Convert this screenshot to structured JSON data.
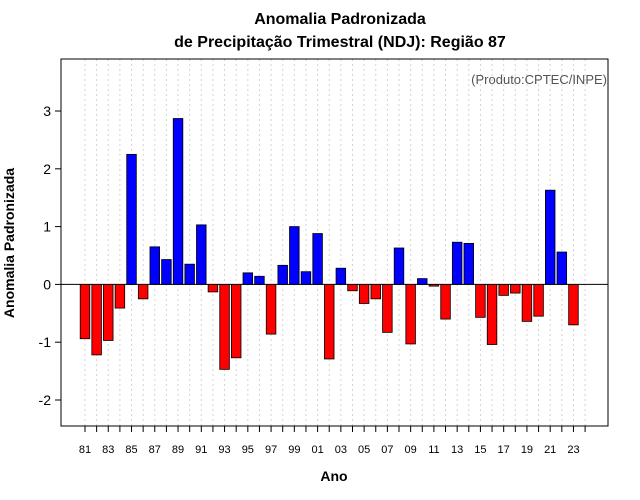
{
  "chart_data": {
    "type": "bar",
    "title": "Anomalia Padronizada",
    "subtitle": "de Precipitação Trimestral (NDJ): Região 87",
    "xlabel": "Ano",
    "ylabel": "Anomalia Padronizada",
    "credit": "(Produto:CPTEC/INPE)",
    "x": [
      1981,
      1982,
      1983,
      1984,
      1985,
      1986,
      1987,
      1988,
      1989,
      1990,
      1991,
      1992,
      1993,
      1994,
      1995,
      1996,
      1997,
      1998,
      1999,
      2000,
      2001,
      2002,
      2003,
      2004,
      2005,
      2006,
      2007,
      2008,
      2009,
      2010,
      2011,
      2012,
      2013,
      2014,
      2015,
      2016,
      2017,
      2018,
      2019,
      2020,
      2021,
      2022,
      2023
    ],
    "values": [
      -0.94,
      -1.22,
      -0.97,
      -0.41,
      2.25,
      -0.25,
      0.65,
      0.43,
      2.87,
      0.35,
      1.03,
      -0.13,
      -1.47,
      -1.27,
      0.2,
      0.14,
      -0.86,
      0.33,
      1.0,
      0.22,
      0.88,
      -1.29,
      0.28,
      -0.11,
      -0.33,
      -0.25,
      -0.83,
      0.63,
      -1.03,
      0.1,
      -0.03,
      -0.6,
      0.73,
      0.71,
      -0.57,
      -1.04,
      -0.19,
      -0.15,
      -0.64,
      -0.55,
      1.63,
      0.56,
      -0.7
    ],
    "xtick_labels": [
      "81",
      "83",
      "85",
      "87",
      "89",
      "91",
      "93",
      "95",
      "97",
      "99",
      "01",
      "03",
      "05",
      "07",
      "09",
      "11",
      "13",
      "15",
      "17",
      "19",
      "21",
      "23"
    ],
    "yticks": [
      -2,
      -1,
      0,
      1,
      2,
      3
    ],
    "ylim": [
      -2.45,
      3.9
    ],
    "colors": {
      "positive": "#0000ff",
      "negative": "#ff0000"
    },
    "grid": true
  }
}
